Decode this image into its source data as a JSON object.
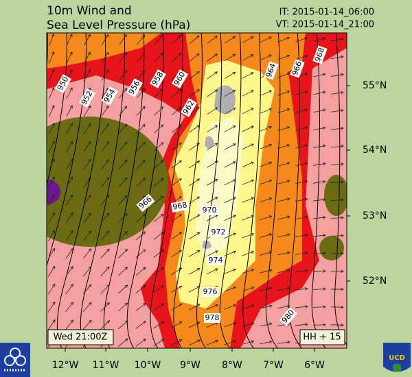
{
  "header": {
    "title_lines": [
      "10m Wind and",
      "Sea Level Pressure (hPa)"
    ],
    "init_time": "IT: 2015-01-14_06:00",
    "valid_time": "VT: 2015-01-14_21:00"
  },
  "map": {
    "lat_labels": [
      "55°N",
      "54°N",
      "53°N",
      "52°N"
    ],
    "lon_labels": [
      "12°W",
      "11°W",
      "10°W",
      "9°W",
      "8°W",
      "7°W",
      "6°W"
    ],
    "isobar_labels": [
      950,
      952,
      954,
      956,
      958,
      960,
      962,
      964,
      966,
      968,
      966,
      968,
      970,
      972,
      974,
      976,
      978,
      980
    ],
    "valid_label": "Wed 21:00Z",
    "forecast_hour_label": "HH + 15"
  },
  "logos": {
    "right_text": "UCD"
  }
}
